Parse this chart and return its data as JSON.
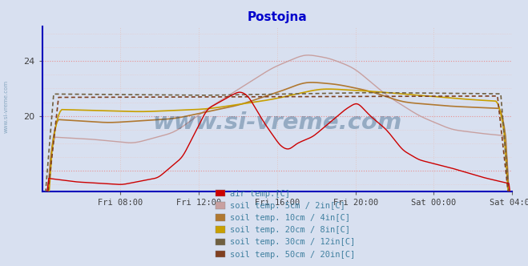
{
  "title": "Postojna",
  "title_color": "#0000cc",
  "background_color": "#d8e0f0",
  "ylabel": "",
  "xlabel": "",
  "xlim": [
    0,
    288
  ],
  "ylim": [
    14.5,
    26.5
  ],
  "yticks": [
    20,
    24
  ],
  "xtick_labels": [
    "Fri 08:00",
    "Fri 12:00",
    "Fri 16:00",
    "Fri 20:00",
    "Sat 00:00",
    "Sat 04:00"
  ],
  "xtick_positions": [
    48,
    96,
    144,
    192,
    240,
    288
  ],
  "watermark": "www.si-vreme.com",
  "watermark_color": "#1a4a70",
  "watermark_alpha": 0.35,
  "legend_text_color": "#4080a0",
  "series": {
    "air_temp": {
      "color": "#cc0000",
      "label": "air temp.[C]"
    },
    "soil_5cm": {
      "color": "#c8a0a0",
      "label": "soil temp. 5cm / 2in[C]"
    },
    "soil_10cm": {
      "color": "#b07830",
      "label": "soil temp. 10cm / 4in[C]"
    },
    "soil_20cm": {
      "color": "#c8a000",
      "label": "soil temp. 20cm / 8in[C]"
    },
    "soil_30cm": {
      "color": "#706040",
      "label": "soil temp. 30cm / 12in[C]"
    },
    "soil_50cm": {
      "color": "#804020",
      "label": "soil temp. 50cm / 20in[C]"
    }
  },
  "grid_color_v": "#e0c8c8",
  "grid_color_h_minor": "#e8c8c8",
  "grid_color_h_major": "#e89090",
  "axis_color": "#0000cc",
  "spine_color": "#0000bb"
}
